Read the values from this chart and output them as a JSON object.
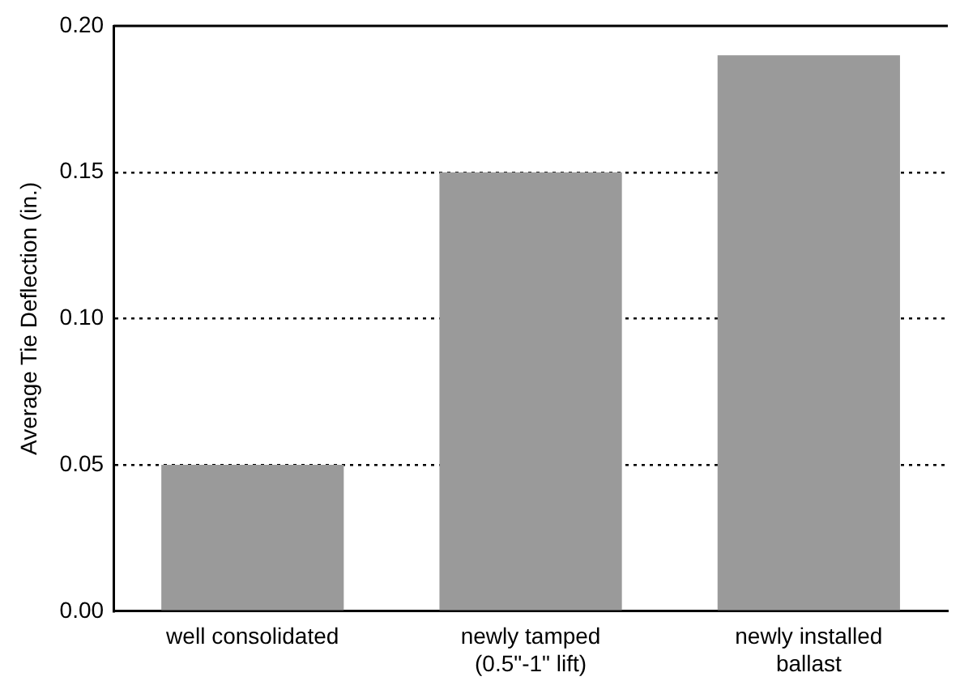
{
  "chart_data": {
    "type": "bar",
    "ylabel": "Average Tie Deflection (in.)",
    "categories": [
      "well consolidated",
      "newly tamped\n(0.5\"-1\" lift)",
      "newly installed\nballast"
    ],
    "values": [
      0.05,
      0.15,
      0.19
    ],
    "color": "#9a9a9a",
    "ylim": [
      0,
      0.2
    ],
    "yticks": [
      {
        "value": 0,
        "label": "0.00"
      },
      {
        "value": 0.05,
        "label": "0.05"
      },
      {
        "value": 0.1,
        "label": "0.10"
      },
      {
        "value": 0.15,
        "label": "0.15"
      },
      {
        "value": 0.2,
        "label": "0.20"
      }
    ],
    "grid": "y",
    "legend": false
  }
}
